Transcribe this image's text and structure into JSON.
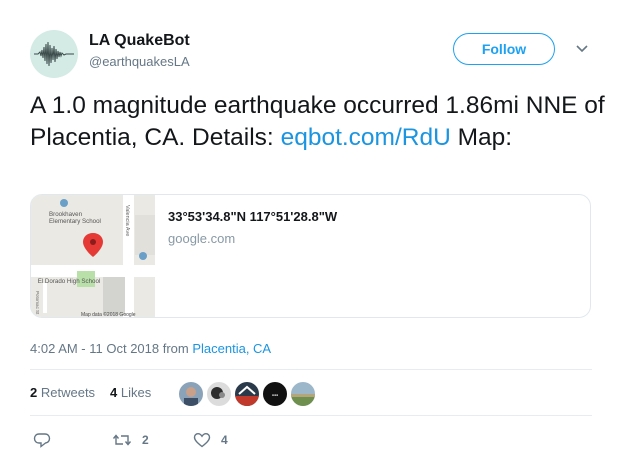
{
  "author": {
    "name": "LA QuakeBot",
    "handle": "@earthquakesLA",
    "avatar_icon": "seismogram-icon"
  },
  "follow_label": "Follow",
  "tweet": {
    "text_part1": "A 1.0 magnitude earthquake occurred 1.86mi NNE of Placentia, CA. Details: ",
    "link": "eqbot.com/RdU",
    "text_part2": " Map:"
  },
  "card": {
    "title": "33°53'34.8\"N 117°51'28.8\"W",
    "domain": "google.com",
    "map_labels": {
      "school1": "Brookhaven Elementary School",
      "school2": "El Dorado High School",
      "street1": "Valencia Ave",
      "street2": "Potomac St",
      "credit": "Map data ©2018 Google"
    }
  },
  "timestamp": {
    "time": "4:02 AM - 11 Oct 2018 from ",
    "place": "Placentia, CA"
  },
  "stats": {
    "retweets_count": "2",
    "retweets_label": "Retweets",
    "likes_count": "4",
    "likes_label": "Likes"
  },
  "actions": {
    "reply_icon": "reply-icon",
    "retweet_icon": "retweet-icon",
    "retweet_count": "2",
    "like_icon": "heart-icon",
    "like_count": "4"
  },
  "colors": {
    "accent": "#1da1f2",
    "link": "#1b95e0",
    "muted": "#657786"
  }
}
